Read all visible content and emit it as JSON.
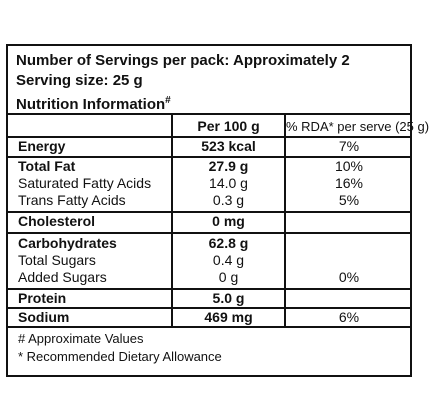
{
  "header": {
    "servings": "Number of Servings per pack: Approximately 2",
    "serving_size": "Serving size: 25 g",
    "title": "Nutrition Information",
    "title_mark": "#"
  },
  "columns": {
    "per100": "Per 100 g",
    "rda": "% RDA* per serve (25 g)"
  },
  "rows": {
    "energy": {
      "label": "Energy",
      "value": "523 kcal",
      "rda": "7%"
    },
    "total_fat": {
      "label": "Total Fat",
      "value": "27.9 g",
      "rda": "10%"
    },
    "saturated": {
      "label": "Saturated Fatty Acids",
      "value": "14.0 g",
      "rda": "16%"
    },
    "trans": {
      "label": "Trans Fatty Acids",
      "value": "0.3 g",
      "rda": "5%"
    },
    "cholesterol": {
      "label": "Cholesterol",
      "value": "0 mg",
      "rda": ""
    },
    "carbohydrates": {
      "label": "Carbohydrates",
      "value": "62.8 g",
      "rda": ""
    },
    "total_sugars": {
      "label": "Total Sugars",
      "value": "0.4 g",
      "rda": ""
    },
    "added_sugars": {
      "label": "Added Sugars",
      "value": "0 g",
      "rda": "0%"
    },
    "protein": {
      "label": "Protein",
      "value": "5.0 g",
      "rda": ""
    },
    "sodium": {
      "label": "Sodium",
      "value": "469 mg",
      "rda": "6%"
    }
  },
  "footnotes": {
    "approx": "# Approximate Values",
    "rda": "* Recommended Dietary Allowance"
  }
}
